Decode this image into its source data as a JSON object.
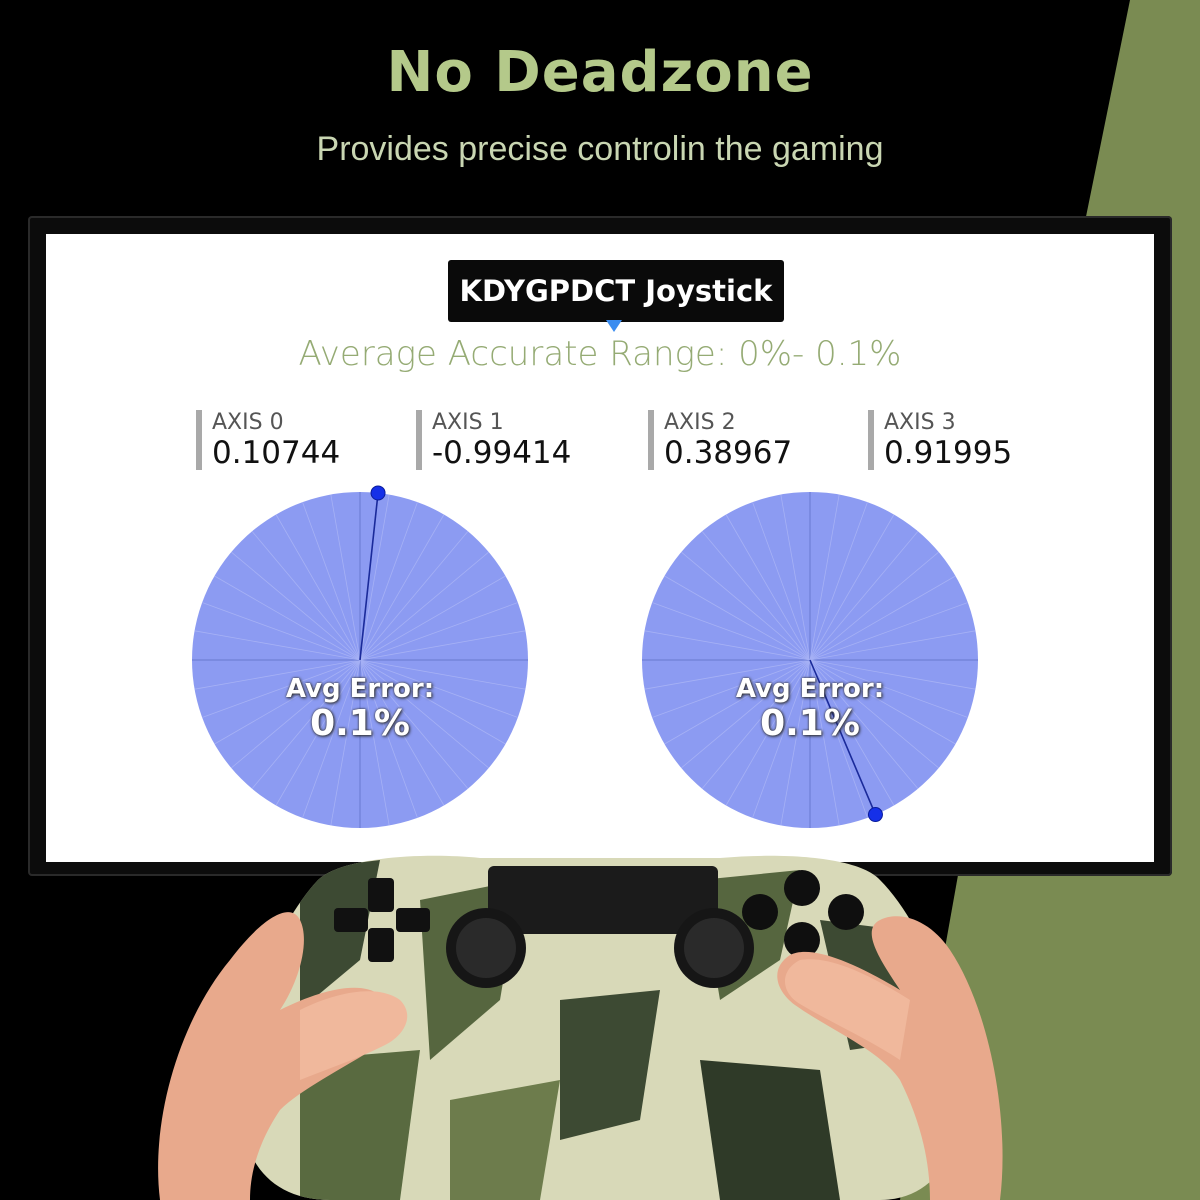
{
  "header": {
    "title": "No Deadzone",
    "subtitle": "Provides precise controlin the gaming"
  },
  "screen": {
    "tooltip": "KDYGPDCT Joystick",
    "accuracy_text": "Average Accurate Range: 0%- 0.1%",
    "axes": [
      {
        "label": "AXIS 0",
        "value": "0.10744"
      },
      {
        "label": "AXIS 1",
        "value": "-0.99414"
      },
      {
        "label": "AXIS 2",
        "value": "0.38967"
      },
      {
        "label": "AXIS 3",
        "value": "0.91995"
      }
    ],
    "dials": [
      {
        "label": "Avg Error:",
        "value": "0.1%"
      },
      {
        "label": "Avg Error:",
        "value": "0.1%"
      }
    ]
  },
  "colors": {
    "accent_green": "#b4c98a",
    "side_green": "#7a8b52",
    "accuracy_text": "#95ab74",
    "dial_fill": "#8c9bf2",
    "dial_point": "#1530e8",
    "tooltip_bg": "#0a0a0a",
    "tooltip_caret": "#3a8cf0"
  },
  "icons": {
    "caret": "caret-down-icon",
    "stick_point": "stick-position-dot-icon",
    "controller": "gamepad-icon"
  }
}
